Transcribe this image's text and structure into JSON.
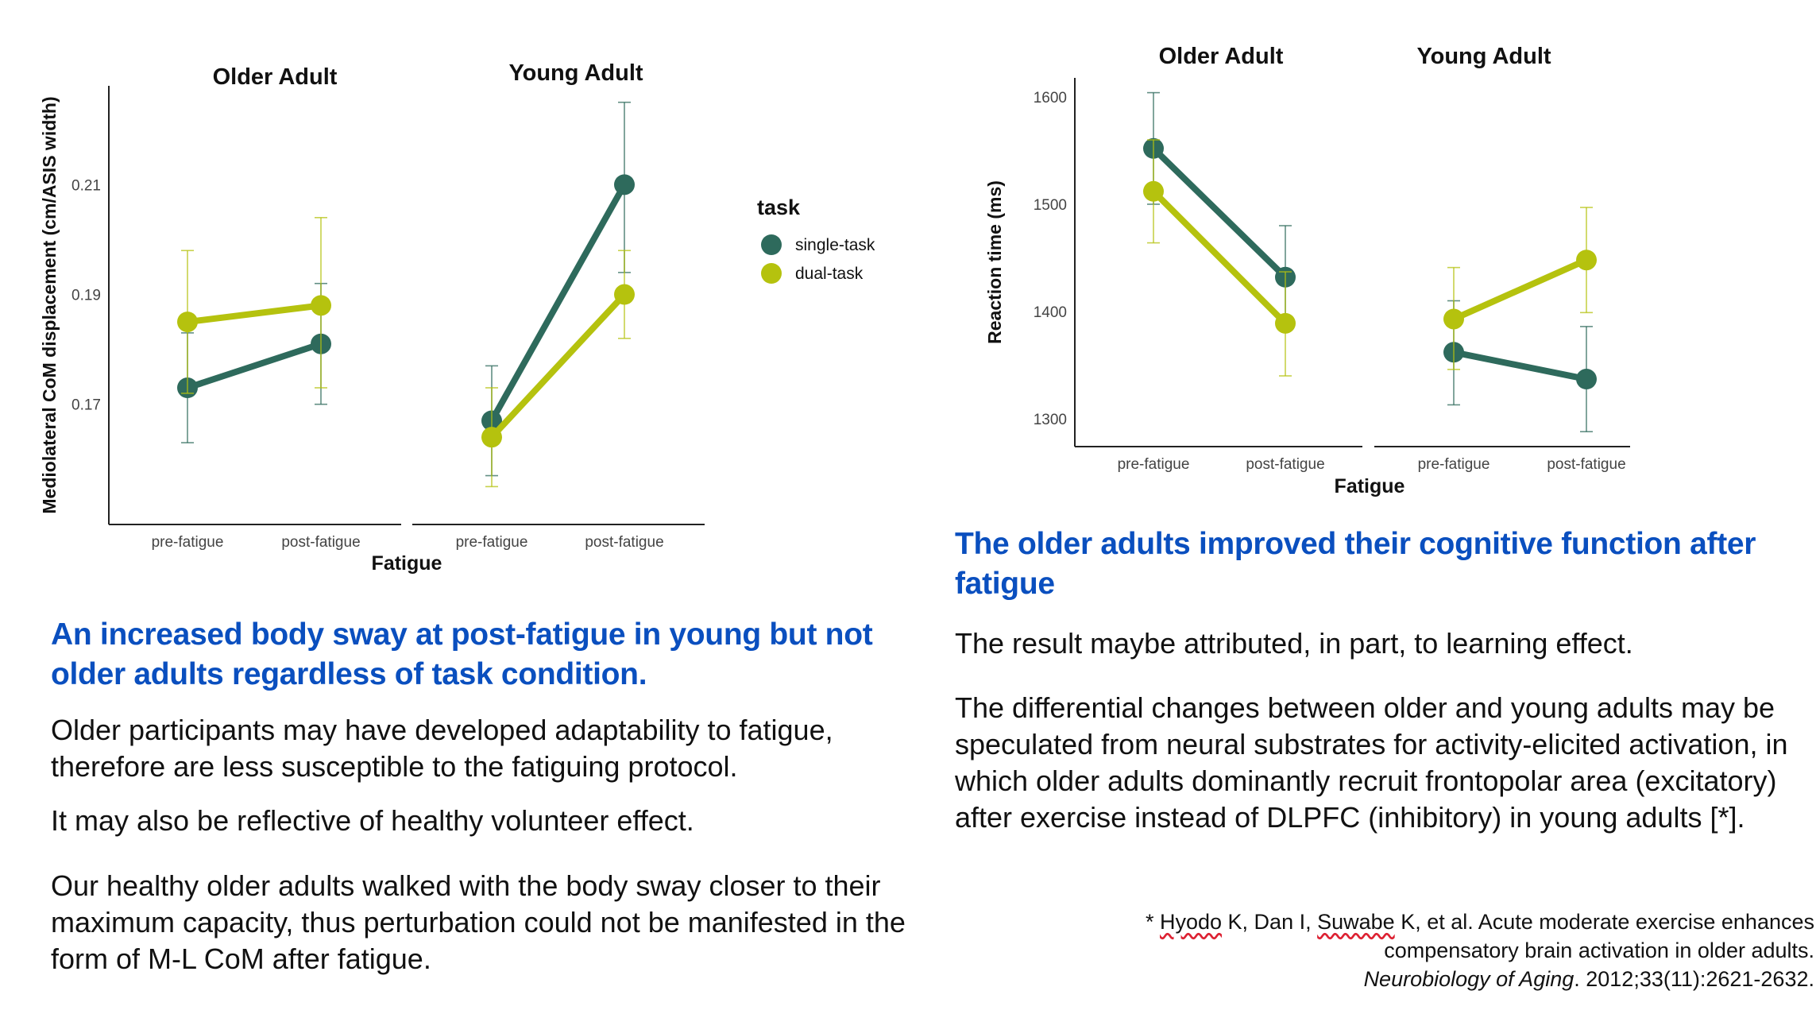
{
  "colors": {
    "single_task": "#2e6a5c",
    "dual_task": "#b5c20e",
    "heading": "#0a4fbf"
  },
  "chart_data": [
    {
      "type": "line",
      "facets": [
        "Older Adult",
        "Young Adult"
      ],
      "categories": [
        "pre-fatigue",
        "post-fatigue"
      ],
      "xlabel": "Fatigue",
      "ylabel": "Mediolateral CoM displacement (cm/ASIS width)",
      "yticks": [
        "0.17",
        "0.19",
        "0.21"
      ],
      "ylim": [
        0.151,
        0.228
      ],
      "legend": {
        "title": "task",
        "position": "right"
      },
      "series": [
        {
          "name": "single-task",
          "color_key": "single_task",
          "facets": [
            {
              "values": [
                0.173,
                0.181
              ],
              "err_low": [
                0.163,
                0.17
              ],
              "err_high": [
                0.183,
                0.192
              ]
            },
            {
              "values": [
                0.167,
                0.21
              ],
              "err_low": [
                0.157,
                0.194
              ],
              "err_high": [
                0.177,
                0.225
              ]
            }
          ]
        },
        {
          "name": "dual-task",
          "color_key": "dual_task",
          "facets": [
            {
              "values": [
                0.185,
                0.188
              ],
              "err_low": [
                0.172,
                0.173
              ],
              "err_high": [
                0.198,
                0.204
              ]
            },
            {
              "values": [
                0.164,
                0.19
              ],
              "err_low": [
                0.155,
                0.182
              ],
              "err_high": [
                0.173,
                0.198
              ]
            }
          ]
        }
      ]
    },
    {
      "type": "line",
      "facets": [
        "Older Adult",
        "Young Adult"
      ],
      "categories": [
        "pre-fatigue",
        "post-fatigue"
      ],
      "xlabel": "Fatigue",
      "ylabel": "Reaction time (ms)",
      "yticks": [
        "1300",
        "1400",
        "1500",
        "1600"
      ],
      "ylim": [
        1275,
        1617
      ],
      "series": [
        {
          "name": "single-task",
          "color_key": "single_task",
          "facets": [
            {
              "values": [
                1552,
                1432
              ],
              "err_low": [
                1500,
                1385
              ],
              "err_high": [
                1604,
                1480
              ]
            },
            {
              "values": [
                1362,
                1337
              ],
              "err_low": [
                1313,
                1288
              ],
              "err_high": [
                1410,
                1386
              ]
            }
          ]
        },
        {
          "name": "dual-task",
          "color_key": "dual_task",
          "facets": [
            {
              "values": [
                1512,
                1389
              ],
              "err_low": [
                1464,
                1340
              ],
              "err_high": [
                1560,
                1437
              ]
            },
            {
              "values": [
                1393,
                1448
              ],
              "err_low": [
                1346,
                1399
              ],
              "err_high": [
                1441,
                1497
              ]
            }
          ]
        }
      ]
    }
  ],
  "left": {
    "heading": "An increased body sway at post-fatigue in young but not older adults regardless of task condition.",
    "p1": "Older participants may have developed adaptability to fatigue, therefore are less susceptible to the fatiguing protocol.",
    "p2": "It may also be reflective of healthy volunteer effect.",
    "p3": "Our healthy older adults walked with the body sway closer to their maximum capacity, thus perturbation could not be manifested in the form of M-L CoM after fatigue."
  },
  "right": {
    "heading": "The older adults improved their cognitive function after fatigue",
    "p1": "The result maybe attributed, in part, to learning effect.",
    "p2": "The differential changes between older and young adults may be speculated from neural substrates for activity-elicited activation, in which older adults dominantly recruit frontopolar area (excitatory) after exercise instead of DLPFC (inhibitory) in young adults [*]."
  },
  "reference": {
    "prefix": "* ",
    "author1": "Hyodo",
    "part1": " K, Dan I, ",
    "author3": "Suwabe",
    "part2": " K, et al. Acute moderate exercise enhances compensatory brain activation in older adults.",
    "journal": "Neurobiology of Aging",
    "tail": ". 2012;33(11):2621-2632."
  }
}
